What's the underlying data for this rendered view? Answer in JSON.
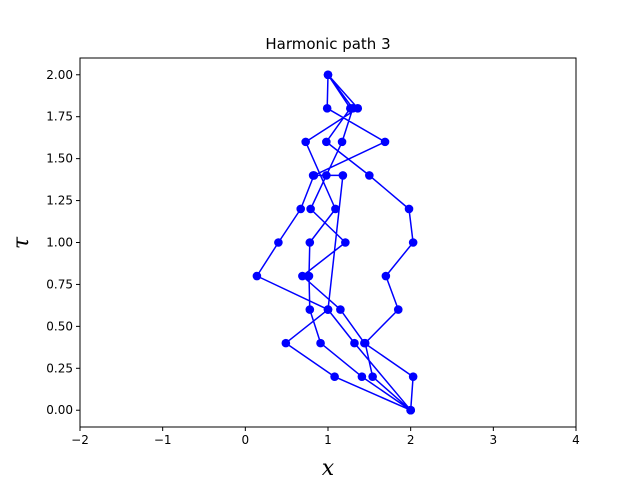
{
  "chart_data": {
    "type": "line",
    "title": "Harmonic path 3",
    "xlabel": "x",
    "ylabel": "τ",
    "xlim": [
      -2,
      4
    ],
    "ylim": [
      -0.1,
      2.1
    ],
    "xticks": [
      -2,
      -1,
      0,
      1,
      2,
      3,
      4
    ],
    "xtick_labels": [
      "−2",
      "−1",
      "0",
      "1",
      "2",
      "3",
      "4"
    ],
    "yticks": [
      0.0,
      0.25,
      0.5,
      0.75,
      1.0,
      1.25,
      1.5,
      1.75,
      2.0
    ],
    "ytick_labels": [
      "0.00",
      "0.25",
      "0.50",
      "0.75",
      "1.00",
      "1.25",
      "1.50",
      "1.75",
      "2.00"
    ],
    "grid": false,
    "color": "#0000ff",
    "series": [
      {
        "points": [
          [
            2.0,
            0.0
          ],
          [
            1.08,
            0.2
          ],
          [
            0.49,
            0.4
          ],
          [
            1.0,
            0.6
          ],
          [
            0.14,
            0.8
          ],
          [
            0.4,
            1.0
          ],
          [
            0.67,
            1.2
          ],
          [
            0.83,
            1.4
          ],
          [
            1.69,
            1.6
          ],
          [
            0.99,
            1.8
          ],
          [
            1.0,
            2.0
          ],
          [
            1.36,
            1.8
          ],
          [
            0.73,
            1.6
          ],
          [
            1.09,
            1.2
          ],
          [
            0.78,
            1.0
          ],
          [
            0.77,
            0.8
          ],
          [
            0.78,
            0.6
          ],
          [
            0.91,
            0.4
          ],
          [
            1.41,
            0.2
          ],
          [
            2.0,
            0.0
          ],
          [
            1.54,
            0.2
          ],
          [
            1.45,
            0.4
          ],
          [
            1.85,
            0.6
          ],
          [
            1.7,
            0.8
          ],
          [
            2.03,
            1.0
          ],
          [
            1.98,
            1.2
          ],
          [
            1.5,
            1.4
          ],
          [
            0.98,
            1.6
          ],
          [
            1.27,
            1.8
          ],
          [
            1.0,
            2.0
          ],
          [
            1.3,
            1.8
          ],
          [
            1.17,
            1.6
          ],
          [
            0.98,
            1.4
          ],
          [
            0.79,
            1.2
          ],
          [
            1.21,
            1.0
          ],
          [
            0.69,
            0.8
          ],
          [
            1.15,
            0.6
          ],
          [
            1.44,
            0.4
          ],
          [
            2.03,
            0.2
          ],
          [
            2.0,
            0.0
          ],
          [
            1.32,
            0.4
          ],
          [
            1.0,
            0.6
          ],
          [
            1.18,
            1.4
          ],
          [
            0.82,
            1.4
          ]
        ]
      }
    ]
  }
}
